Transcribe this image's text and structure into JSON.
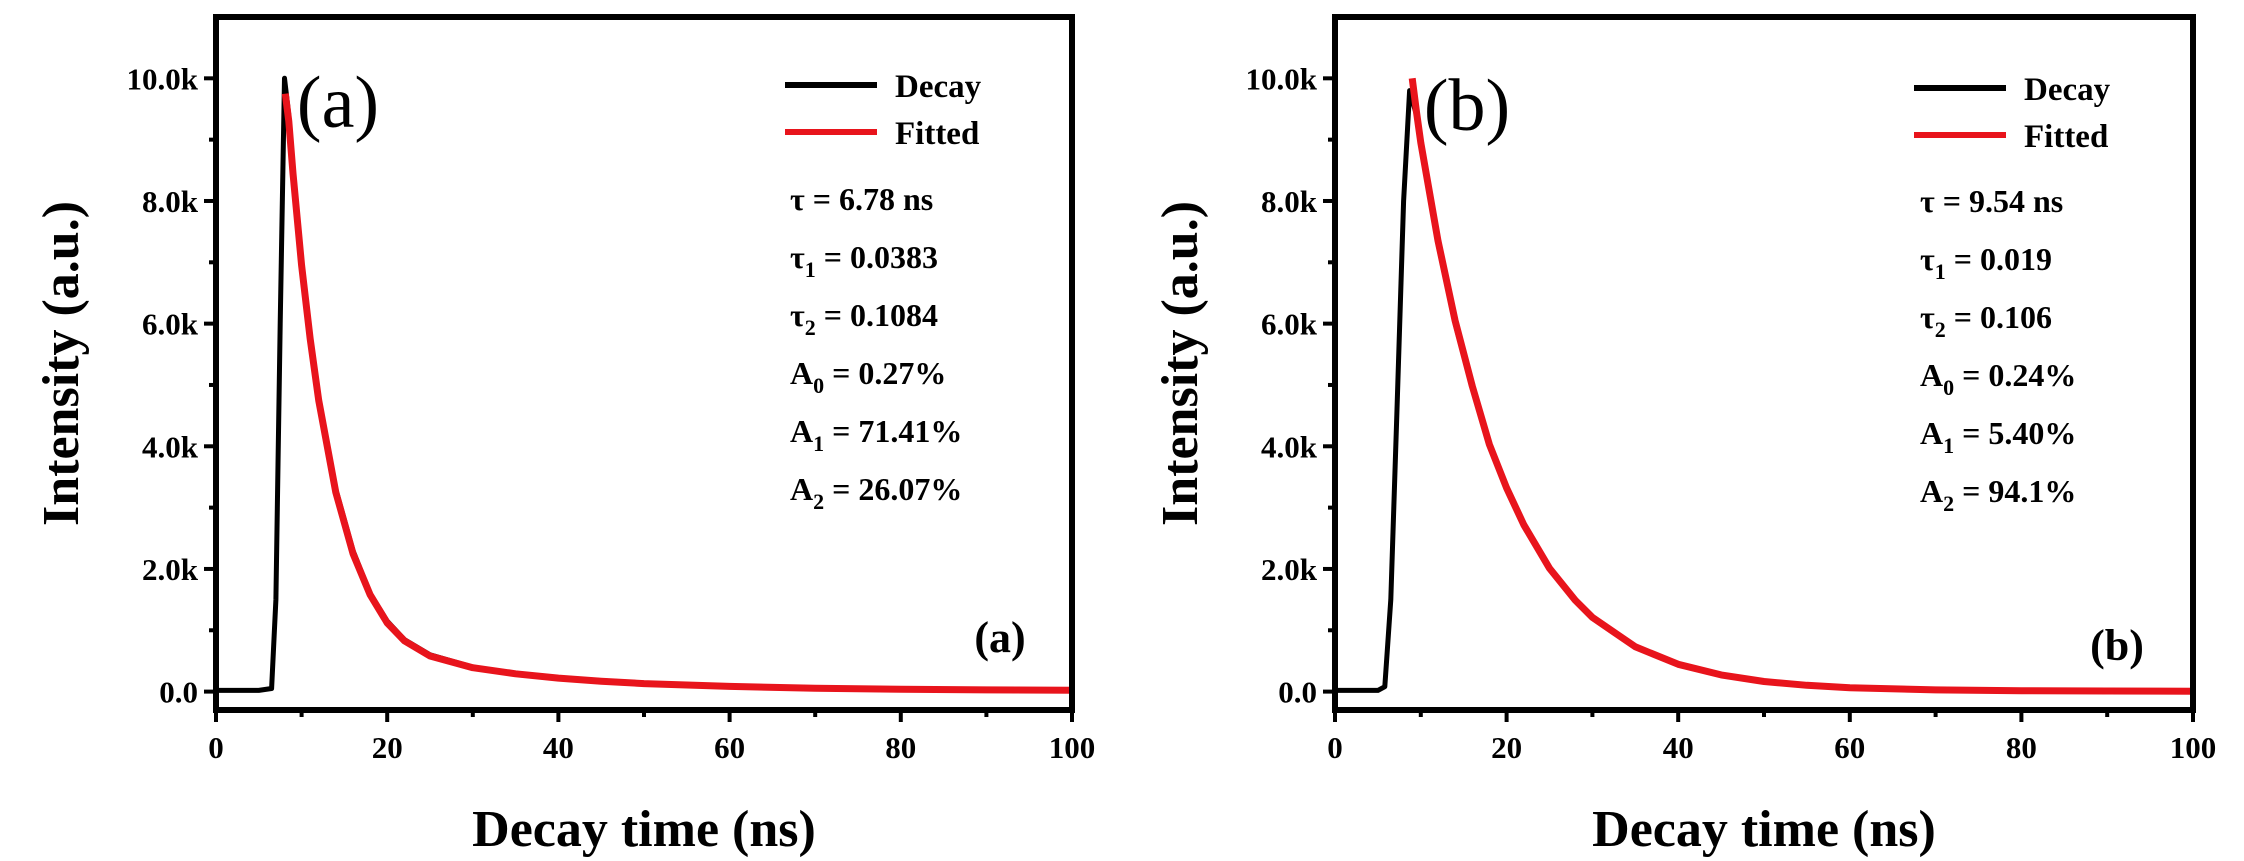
{
  "chart_data": [
    {
      "type": "line",
      "panel_label": "(a)",
      "corner_label": "(a)",
      "xlabel": "Decay time (ns)",
      "ylabel": "Intensity (a.u.)",
      "xlim": [
        0,
        100
      ],
      "ylim": [
        -300,
        11000
      ],
      "x_ticks": [
        0,
        20,
        40,
        60,
        80,
        100
      ],
      "x_tick_labels": [
        "0",
        "20",
        "40",
        "60",
        "80",
        "100"
      ],
      "y_ticks": [
        0,
        2000,
        4000,
        6000,
        8000,
        10000
      ],
      "y_tick_labels": [
        "0.0",
        "2.0k",
        "4.0k",
        "6.0k",
        "8.0k",
        "10.0k"
      ],
      "legend_position": "top-right",
      "series": [
        {
          "name": "Decay",
          "color": "#000000",
          "x": [
            0,
            5,
            6.5,
            7.0,
            7.5,
            8.0,
            8.5,
            9,
            10,
            11,
            12,
            14,
            16,
            18,
            20,
            22,
            25,
            30,
            35,
            40,
            45,
            50,
            60,
            70,
            80,
            90,
            100
          ],
          "values": [
            20,
            20,
            50,
            1500,
            6000,
            10000,
            9400,
            8500,
            7000,
            5800,
            4800,
            3300,
            2300,
            1600,
            1150,
            850,
            600,
            400,
            300,
            230,
            180,
            140,
            90,
            60,
            40,
            30,
            25
          ]
        },
        {
          "name": "Fitted",
          "color": "#e8141c",
          "x": [
            8.1,
            8.5,
            9,
            10,
            11,
            12,
            14,
            16,
            18,
            20,
            22,
            25,
            30,
            35,
            40,
            45,
            50,
            60,
            70,
            80,
            90,
            100
          ],
          "values": [
            9750,
            9300,
            8450,
            6950,
            5750,
            4750,
            3250,
            2250,
            1580,
            1120,
            830,
            580,
            390,
            290,
            220,
            170,
            130,
            85,
            55,
            38,
            28,
            22
          ]
        }
      ],
      "annotations": [
        {
          "symbol": "τ",
          "sub": "",
          "rest": "  = 6.78 ns"
        },
        {
          "symbol": "τ",
          "sub": "1",
          "rest": " = 0.0383"
        },
        {
          "symbol": "τ",
          "sub": "2",
          "rest": " = 0.1084"
        },
        {
          "symbol": "A",
          "sub": "0",
          "rest": " = 0.27%"
        },
        {
          "symbol": "A",
          "sub": "1",
          "rest": " = 71.41%"
        },
        {
          "symbol": "A",
          "sub": "2",
          "rest": " = 26.07%"
        }
      ]
    },
    {
      "type": "line",
      "panel_label": "(b)",
      "corner_label": "(b)",
      "xlabel": "Decay time (ns)",
      "ylabel": "Intensity (a.u.)",
      "xlim": [
        0,
        100
      ],
      "ylim": [
        -300,
        11000
      ],
      "x_ticks": [
        0,
        20,
        40,
        60,
        80,
        100
      ],
      "x_tick_labels": [
        "0",
        "20",
        "40",
        "60",
        "80",
        "100"
      ],
      "y_ticks": [
        0,
        2000,
        4000,
        6000,
        8000,
        10000
      ],
      "y_tick_labels": [
        "0.0",
        "2.0k",
        "4.0k",
        "6.0k",
        "8.0k",
        "10.0k"
      ],
      "legend_position": "top-right",
      "series": [
        {
          "name": "Decay",
          "color": "#000000",
          "x": [
            0,
            5,
            5.8,
            6.5,
            7.2,
            8.0,
            8.7,
            9.5,
            10,
            12,
            14,
            16,
            18,
            20,
            22,
            25,
            28,
            30,
            35,
            40,
            45,
            50,
            55,
            60,
            70,
            80,
            90,
            100
          ],
          "values": [
            20,
            20,
            80,
            1500,
            4500,
            8000,
            9800,
            9400,
            8900,
            7300,
            6000,
            4950,
            4000,
            3300,
            2700,
            2000,
            1480,
            1200,
            720,
            440,
            270,
            160,
            100,
            60,
            30,
            15,
            10,
            8
          ]
        },
        {
          "name": "Fitted",
          "color": "#e8141c",
          "x": [
            9.0,
            9.5,
            10,
            12,
            14,
            16,
            18,
            20,
            22,
            25,
            28,
            30,
            35,
            40,
            45,
            50,
            55,
            60,
            70,
            80,
            90,
            100
          ],
          "values": [
            10000,
            9450,
            8950,
            7350,
            6050,
            4980,
            4030,
            3320,
            2720,
            2010,
            1490,
            1210,
            730,
            445,
            272,
            165,
            102,
            62,
            28,
            14,
            9,
            7
          ]
        }
      ],
      "annotations": [
        {
          "symbol": "τ",
          "sub": "",
          "rest": "  = 9.54 ns"
        },
        {
          "symbol": "τ",
          "sub": "1",
          "rest": " = 0.019"
        },
        {
          "symbol": "τ",
          "sub": "2",
          "rest": " = 0.106"
        },
        {
          "symbol": "A",
          "sub": "0",
          "rest": " = 0.24%"
        },
        {
          "symbol": "A",
          "sub": "1",
          "rest": " = 5.40%"
        },
        {
          "symbol": "A",
          "sub": "2",
          "rest": " = 94.1%"
        }
      ]
    }
  ]
}
